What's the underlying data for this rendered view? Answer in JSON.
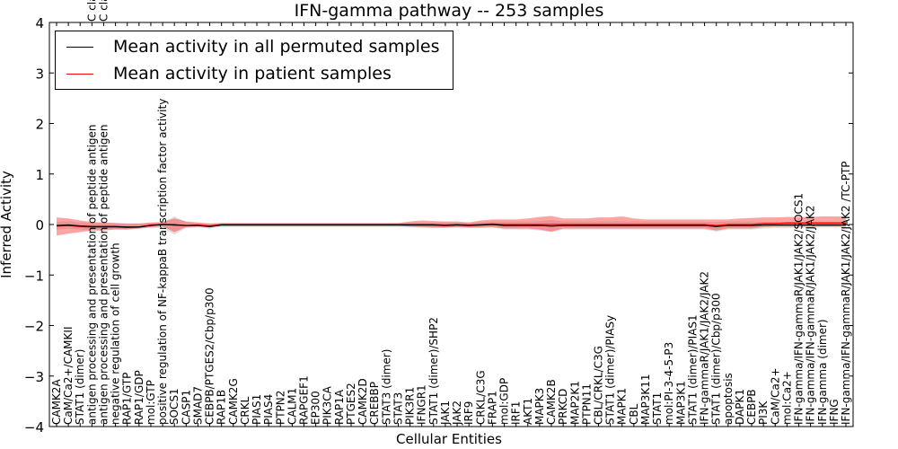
{
  "chart_data": {
    "type": "line",
    "title": "IFN-gamma pathway -- 253 samples",
    "xlabel": "Cellular Entities",
    "ylabel": "Inferred Activity",
    "ylim": [
      -4,
      4
    ],
    "yticks": [
      -4,
      -3,
      -2,
      -1,
      0,
      1,
      2,
      3,
      4
    ],
    "ytick_labels": [
      "−4",
      "−3",
      "−2",
      "−1",
      "0",
      "1",
      "2",
      "3",
      "4"
    ],
    "top_clipped_labels": [
      "C cla",
      "C cla"
    ],
    "categories": [
      "CAMK2A",
      "CaM/Ca2+/CAMKII",
      "STAT1 (dimer)",
      "antigen processing and presentation of peptide antigen",
      "antigen processing and presentation of peptide antigen",
      "negative regulation of cell growth",
      "RAP1/GTP",
      "RAP1/GDP",
      "mol:GTP",
      "positive regulation of NF-kappaB transcription factor activity",
      "SOCS1",
      "CASP1",
      "SMAD7",
      "CEBPB/PTGES2/Cbp/p300",
      "RAP1B",
      "CAMK2G",
      "CRKL",
      "PIAS1",
      "PIAS4",
      "PTPN2",
      "CALM1",
      "RAPGEF1",
      "EP300",
      "PIK3CA",
      "RAP1A",
      "PTGES2",
      "CAMK2D",
      "CREBBP",
      "STAT3 (dimer)",
      "STAT3",
      "PIK3R1",
      "IFNGR1",
      "STAT1 (dimer)/SHP2",
      "JAK1",
      "JAK2",
      "IRF9",
      "CRKL/C3G",
      "FRAP1",
      "mol:GDP",
      "IRF1",
      "AKT1",
      "MAPK3",
      "CAMK2B",
      "PRKCD",
      "MAP2K1",
      "PTPN11",
      "CBL/CRKL/C3G",
      "STAT1 (dimer)/PIASy",
      "MAPK1",
      "CBL",
      "MAP3K11",
      "STAT1",
      "mol:PI-3-4-5-P3",
      "MAP3K1",
      "STAT1 (dimer)/PIAS1",
      "IFN-gammaR/JAK1/JAK2/JAK2",
      "STAT1 (dimer)/Cbp/p300",
      "apoptosis",
      "DAPK1",
      "CEBPB",
      "PI3K",
      "CaM/Ca2+",
      "mol:Ca2+",
      "IFN-gamma/IFN-gammaR/JAK1/JAK2/SOCS1",
      "IFN-gamma/IFN-gammaR/JAK1/JAK2/JAK2",
      "IFN-gamma (dimer)",
      "IFNG",
      "IFN-gamma/IFN-gammaR/JAK1/JAK2/JAK2 /TC-PTP"
    ],
    "series": [
      {
        "name": "Mean activity in all permuted samples",
        "color": "#000000",
        "values": [
          -0.02,
          -0.01,
          -0.03,
          -0.04,
          -0.04,
          -0.04,
          -0.05,
          -0.05,
          -0.02,
          0.0,
          -0.01,
          -0.02,
          -0.02,
          -0.04,
          -0.01,
          -0.01,
          -0.01,
          -0.01,
          -0.01,
          -0.01,
          -0.01,
          -0.01,
          -0.01,
          -0.01,
          -0.01,
          -0.01,
          -0.01,
          -0.01,
          -0.01,
          -0.01,
          -0.01,
          -0.01,
          -0.01,
          -0.02,
          -0.01,
          -0.02,
          -0.01,
          0.0,
          -0.02,
          -0.02,
          -0.02,
          -0.02,
          -0.03,
          -0.02,
          -0.02,
          -0.02,
          -0.02,
          -0.02,
          -0.02,
          -0.02,
          -0.02,
          -0.02,
          -0.02,
          -0.02,
          -0.02,
          -0.02,
          -0.04,
          -0.02,
          -0.02,
          -0.02,
          -0.01,
          -0.01,
          -0.01,
          -0.01,
          -0.01,
          -0.01,
          -0.01,
          -0.01
        ],
        "band_low": [
          -0.1,
          -0.08,
          -0.1,
          -0.11,
          -0.1,
          -0.09,
          -0.1,
          -0.08,
          -0.07,
          -0.06,
          -0.2,
          -0.07,
          -0.06,
          -0.08,
          -0.05,
          -0.05,
          -0.05,
          -0.05,
          -0.05,
          -0.05,
          -0.05,
          -0.05,
          -0.05,
          -0.05,
          -0.05,
          -0.05,
          -0.05,
          -0.05,
          -0.05,
          -0.05,
          -0.06,
          -0.06,
          -0.07,
          -0.07,
          -0.06,
          -0.07,
          -0.07,
          -0.06,
          -0.1,
          -0.1,
          -0.1,
          -0.12,
          -0.15,
          -0.1,
          -0.1,
          -0.1,
          -0.1,
          -0.1,
          -0.1,
          -0.1,
          -0.1,
          -0.1,
          -0.1,
          -0.1,
          -0.1,
          -0.1,
          -0.14,
          -0.1,
          -0.1,
          -0.1,
          -0.08,
          -0.07,
          -0.07,
          -0.07,
          -0.06,
          -0.06,
          -0.06,
          -0.06
        ],
        "band_high": [
          0.05,
          0.06,
          0.04,
          0.03,
          0.03,
          0.03,
          0.02,
          0.02,
          0.03,
          0.04,
          0.16,
          0.05,
          0.03,
          0.02,
          0.03,
          0.03,
          0.03,
          0.03,
          0.03,
          0.03,
          0.03,
          0.03,
          0.03,
          0.03,
          0.03,
          0.03,
          0.03,
          0.03,
          0.03,
          0.03,
          0.04,
          0.04,
          0.04,
          0.04,
          0.04,
          0.03,
          0.05,
          0.06,
          0.06,
          0.06,
          0.06,
          0.07,
          0.09,
          0.06,
          0.06,
          0.06,
          0.06,
          0.06,
          0.06,
          0.06,
          0.06,
          0.06,
          0.06,
          0.06,
          0.06,
          0.06,
          0.05,
          0.06,
          0.06,
          0.06,
          0.05,
          0.05,
          0.05,
          0.05,
          0.05,
          0.05,
          0.05,
          0.05
        ]
      },
      {
        "name": "Mean activity in patient samples",
        "color": "#ff0000",
        "values": [
          -0.03,
          -0.02,
          -0.04,
          -0.05,
          -0.05,
          -0.05,
          -0.06,
          -0.05,
          -0.01,
          0.0,
          0.0,
          -0.02,
          -0.01,
          -0.03,
          0.0,
          0.0,
          0.0,
          0.0,
          0.0,
          0.0,
          0.0,
          0.0,
          0.0,
          0.0,
          0.0,
          0.0,
          0.0,
          0.0,
          0.0,
          0.0,
          0.0,
          0.0,
          0.0,
          -0.01,
          0.0,
          -0.01,
          0.0,
          0.01,
          0.0,
          0.0,
          0.0,
          0.0,
          0.0,
          0.0,
          0.0,
          0.0,
          0.0,
          0.0,
          0.0,
          0.0,
          0.0,
          0.0,
          0.0,
          0.0,
          0.0,
          0.0,
          -0.02,
          0.0,
          0.0,
          0.0,
          0.02,
          0.02,
          0.03,
          0.03,
          0.03,
          0.03,
          0.03,
          0.03
        ],
        "band_low": [
          -0.22,
          -0.18,
          -0.15,
          -0.12,
          -0.12,
          -0.1,
          -0.1,
          -0.08,
          -0.05,
          -0.04,
          -0.15,
          -0.05,
          -0.04,
          -0.06,
          -0.02,
          -0.02,
          -0.02,
          -0.02,
          -0.02,
          -0.02,
          -0.02,
          -0.02,
          -0.02,
          -0.02,
          -0.02,
          -0.02,
          -0.02,
          -0.02,
          -0.02,
          -0.02,
          -0.04,
          -0.05,
          -0.06,
          -0.06,
          -0.05,
          -0.06,
          -0.06,
          -0.05,
          -0.08,
          -0.08,
          -0.08,
          -0.1,
          -0.14,
          -0.08,
          -0.08,
          -0.08,
          -0.08,
          -0.08,
          -0.08,
          -0.08,
          -0.08,
          -0.08,
          -0.08,
          -0.08,
          -0.08,
          -0.08,
          -0.12,
          -0.08,
          -0.08,
          -0.08,
          -0.05,
          -0.04,
          -0.04,
          -0.04,
          -0.04,
          -0.04,
          -0.04,
          -0.04
        ],
        "band_high": [
          0.14,
          0.12,
          0.08,
          0.05,
          0.04,
          0.03,
          0.02,
          0.02,
          0.04,
          0.05,
          0.12,
          0.06,
          0.04,
          0.02,
          0.03,
          0.03,
          0.03,
          0.03,
          0.03,
          0.03,
          0.03,
          0.03,
          0.03,
          0.03,
          0.03,
          0.03,
          0.03,
          0.03,
          0.03,
          0.03,
          0.06,
          0.08,
          0.07,
          0.06,
          0.06,
          0.04,
          0.08,
          0.1,
          0.1,
          0.1,
          0.12,
          0.15,
          0.17,
          0.12,
          0.12,
          0.12,
          0.14,
          0.14,
          0.16,
          0.12,
          0.1,
          0.1,
          0.1,
          0.1,
          0.1,
          0.1,
          0.1,
          0.1,
          0.12,
          0.13,
          0.14,
          0.14,
          0.15,
          0.15,
          0.15,
          0.16,
          0.16,
          0.16
        ]
      }
    ],
    "legend_position": "top-left"
  }
}
